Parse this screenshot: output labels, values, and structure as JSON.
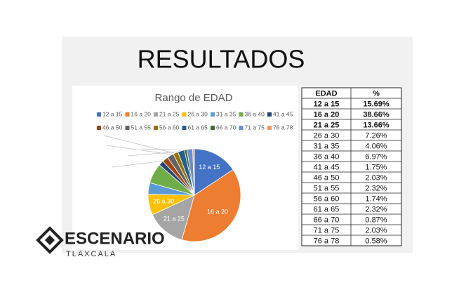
{
  "heading": "RESULTADOS",
  "chart_data": {
    "type": "pie",
    "title": "Rango de EDAD",
    "categories": [
      "12 a 15",
      "16 a 20",
      "21 a 25",
      "26 a 30",
      "31 a 35",
      "36 a 40",
      "41 a 45",
      "46 a 50",
      "51 a 55",
      "56 a 60",
      "61 a 65",
      "66 a 70",
      "71 a 75",
      "76 a 78"
    ],
    "values": [
      15.69,
      38.66,
      13.66,
      7.26,
      4.06,
      6.97,
      1.75,
      2.03,
      2.32,
      1.74,
      2.32,
      0.87,
      2.03,
      0.58
    ],
    "value_labels": [
      "15.69%",
      "38.66%",
      "13.66%",
      "7.26%",
      "4.06%",
      "6.97%",
      "1.75%",
      "2.03%",
      "2.32%",
      "1.74%",
      "2.32%",
      "0.87%",
      "2.03%",
      "0.58%"
    ],
    "colors": [
      "#4472c4",
      "#ed7d31",
      "#a5a5a5",
      "#ffc000",
      "#5b9bd5",
      "#70ad47",
      "#264478",
      "#9e480e",
      "#636363",
      "#997300",
      "#255e91",
      "#43682b",
      "#698ed0",
      "#f1975a"
    ],
    "legend": "top"
  },
  "table": {
    "header": [
      "EDAD",
      "%"
    ]
  },
  "logo": {
    "name": "ESCENARIO",
    "subtitle": "TLAXCALA"
  }
}
